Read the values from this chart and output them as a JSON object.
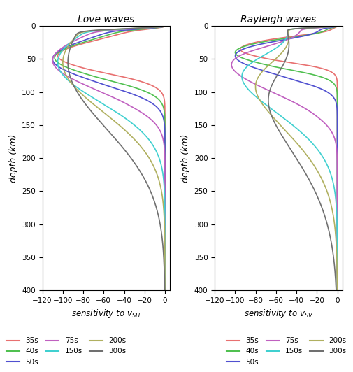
{
  "title_love": "Love waves",
  "title_rayleigh": "Rayleigh waves",
  "xlabel_love": "sensitivity to $v_{SH}$",
  "xlabel_rayleigh": "sensitivity to $v_{SV}$",
  "ylabel": "depth (km)",
  "xlim": [
    -120,
    5
  ],
  "ylim": [
    400,
    0
  ],
  "xticks": [
    -120,
    -100,
    -80,
    -60,
    -40,
    -20,
    0
  ],
  "yticks": [
    0,
    50,
    100,
    150,
    200,
    250,
    300,
    350,
    400
  ],
  "periods": [
    35,
    40,
    50,
    75,
    150,
    200,
    300
  ],
  "colors": {
    "35": "#e87070",
    "40": "#50c050",
    "50": "#5050d0",
    "75": "#c060c0",
    "150": "#40d0d0",
    "200": "#b0b060",
    "300": "#707070"
  },
  "legend_periods": [
    "35s",
    "40s",
    "50s",
    "75s",
    "150s",
    "200s",
    "300s"
  ]
}
